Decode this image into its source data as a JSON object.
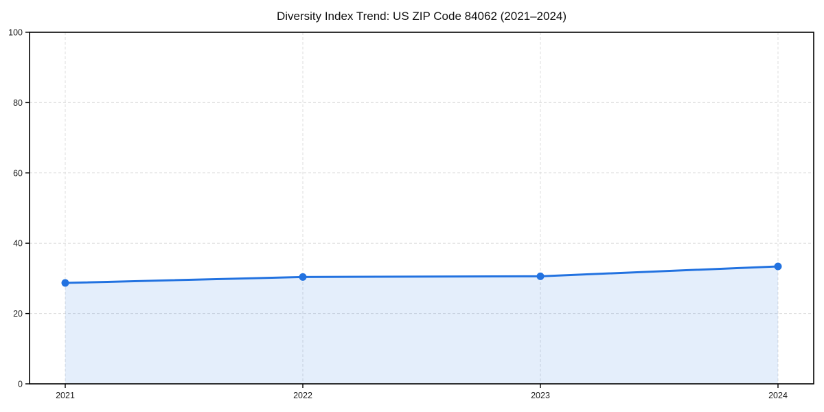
{
  "chart_data": {
    "type": "line",
    "title": "Diversity Index Trend: US ZIP Code 84062 (2021–2024)",
    "x": [
      2021,
      2022,
      2023,
      2024
    ],
    "xtick_labels": [
      "2021",
      "2022",
      "2023",
      "2024"
    ],
    "series": [
      {
        "name": "Diversity Index",
        "values": [
          28.7,
          30.4,
          30.6,
          33.4
        ]
      }
    ],
    "xlabel": "",
    "ylabel": "",
    "ylim": [
      0,
      100
    ],
    "yticks": [
      0,
      20,
      40,
      60,
      80,
      100
    ],
    "grid": "dashed",
    "grid_on": true,
    "legend": "none",
    "area_fill": true,
    "marker": "circle",
    "line_color": "#2272e0",
    "fill_color": "rgba(34,114,224,0.12)",
    "grid_color": "#dcdcdc",
    "spine_color": "#000000",
    "tick_color": "#000000"
  }
}
